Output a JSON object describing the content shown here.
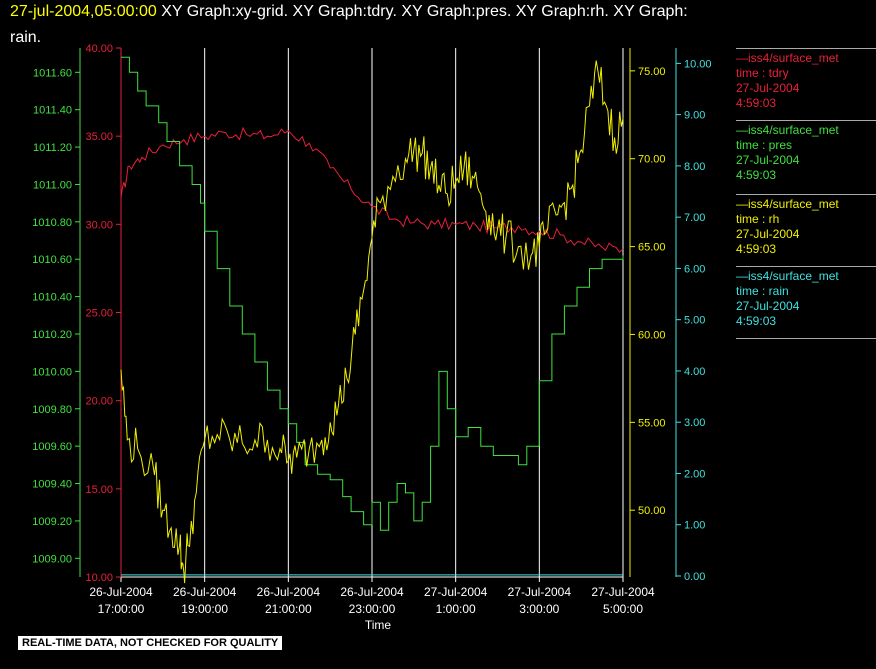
{
  "title": {
    "timestamp": "27-jul-2004,05:00:00",
    "line1_rest": " XY Graph:xy-grid.  XY Graph:tdry.  XY Graph:pres.  XY Graph:rh.  XY Graph:",
    "line2": "rain."
  },
  "notice": "REAL-TIME DATA, NOT CHECKED FOR QUALITY",
  "colors": {
    "tdry": "#e8203a",
    "pres": "#40e040",
    "rh": "#f0f000",
    "rain": "#40e0e0",
    "grid": "#ffffff"
  },
  "legend": [
    {
      "source": "—iss4/surface_met",
      "field": "time : tdry",
      "date": "27-Jul-2004",
      "time": "4:59:03",
      "color": "#e8203a"
    },
    {
      "source": "—iss4/surface_met",
      "field": "time : pres",
      "date": "27-Jul-2004",
      "time": "4:59:03",
      "color": "#40e040"
    },
    {
      "source": "—iss4/surface_met",
      "field": "time : rh",
      "date": "27-Jul-2004",
      "time": "4:59:03",
      "color": "#f0f000"
    },
    {
      "source": "—iss4/surface_met",
      "field": "time : rain",
      "date": "27-Jul-2004",
      "time": "4:59:03",
      "color": "#40e0e0"
    }
  ],
  "chart_data": {
    "type": "line",
    "xlabel": "Time",
    "xlim": [
      0,
      12
    ],
    "x_tick_values": [
      0,
      2,
      4,
      6,
      8,
      10,
      12
    ],
    "x_tick_labels": [
      [
        "26-Jul-2004",
        "17:00:00"
      ],
      [
        "26-Jul-2004",
        "19:00:00"
      ],
      [
        "26-Jul-2004",
        "21:00:00"
      ],
      [
        "26-Jul-2004",
        "23:00:00"
      ],
      [
        "27-Jul-2004",
        "1:00:00"
      ],
      [
        "27-Jul-2004",
        "3:00:00"
      ],
      [
        "27-Jul-2004",
        "5:00:00"
      ]
    ],
    "grid": "vertical",
    "axes": [
      {
        "id": "pres",
        "color": "#40e040",
        "range": [
          1008.9,
          1011.73
        ],
        "ticks": [
          "1009.00",
          "1009.20",
          "1009.40",
          "1009.60",
          "1009.80",
          "1010.00",
          "1010.20",
          "1010.40",
          "1010.60",
          "1010.80",
          "1011.00",
          "1011.20",
          "1011.40",
          "1011.60"
        ]
      },
      {
        "id": "tdry",
        "color": "#e8203a",
        "range": [
          10,
          40
        ],
        "ticks": [
          "10.00",
          "15.00",
          "20.00",
          "25.00",
          "30.00",
          "35.00",
          "40.00"
        ]
      },
      {
        "id": "rh",
        "color": "#f0f000",
        "range": [
          46.2,
          76.3
        ],
        "ticks": [
          "50.00",
          "55.00",
          "60.00",
          "65.00",
          "70.00",
          "75.00"
        ]
      },
      {
        "id": "rain",
        "color": "#40e0e0",
        "range": [
          -0.02,
          10.3
        ],
        "ticks": [
          "0.00",
          "1.00",
          "2.00",
          "3.00",
          "4.00",
          "5.00",
          "6.00",
          "7.00",
          "8.00",
          "9.00",
          "10.00"
        ]
      }
    ],
    "series": [
      {
        "name": "iss4/surface_met time : tdry",
        "axis": "tdry",
        "color": "#e8203a",
        "x": [
          0,
          0.2,
          0.5,
          1.0,
          1.5,
          2.0,
          2.5,
          3.0,
          3.5,
          4.0,
          4.5,
          5.0,
          5.5,
          6.0,
          6.5,
          7.0,
          7.5,
          8.0,
          8.5,
          9.0,
          9.5,
          10.0,
          10.5,
          11.0,
          11.5,
          12.0
        ],
        "y": [
          31.5,
          33.3,
          33.8,
          34.5,
          34.8,
          35.0,
          35.2,
          35.1,
          35.0,
          35.3,
          34.6,
          33.2,
          32.0,
          31.0,
          30.3,
          30.1,
          30.0,
          30.0,
          29.9,
          29.8,
          29.9,
          29.6,
          29.4,
          29.0,
          28.7,
          28.6
        ]
      },
      {
        "name": "iss4/surface_met time : pres",
        "axis": "pres",
        "color": "#40e040",
        "x": [
          0,
          0.2,
          0.4,
          0.6,
          0.9,
          1.1,
          1.4,
          1.7,
          1.9,
          2.0,
          2.3,
          2.6,
          2.9,
          3.2,
          3.5,
          3.8,
          4.0,
          4.2,
          4.4,
          4.7,
          5.0,
          5.3,
          5.5,
          5.8,
          6.0,
          6.2,
          6.4,
          6.6,
          6.8,
          7.0,
          7.2,
          7.4,
          7.6,
          7.8,
          8.0,
          8.3,
          8.6,
          8.9,
          9.2,
          9.5,
          9.7,
          10.0,
          10.3,
          10.6,
          10.9,
          11.2,
          11.5,
          11.8,
          12.0
        ],
        "y": [
          1011.68,
          1011.6,
          1011.5,
          1011.42,
          1011.33,
          1011.23,
          1011.1,
          1011.0,
          1010.9,
          1010.75,
          1010.55,
          1010.35,
          1010.2,
          1010.05,
          1009.9,
          1009.8,
          1009.72,
          1009.62,
          1009.5,
          1009.45,
          1009.42,
          1009.33,
          1009.25,
          1009.18,
          1009.3,
          1009.15,
          1009.3,
          1009.4,
          1009.35,
          1009.2,
          1009.3,
          1009.6,
          1010.0,
          1009.8,
          1009.65,
          1009.7,
          1009.6,
          1009.55,
          1009.55,
          1009.5,
          1009.6,
          1009.95,
          1010.2,
          1010.35,
          1010.45,
          1010.55,
          1010.6,
          1010.6,
          1010.62
        ]
      },
      {
        "name": "iss4/surface_met time : rh",
        "axis": "rh",
        "color": "#f0f000",
        "x": [
          0,
          0.15,
          0.4,
          0.8,
          1.0,
          1.2,
          1.4,
          1.5,
          1.6,
          1.8,
          2.0,
          2.3,
          2.6,
          2.9,
          3.2,
          3.5,
          3.8,
          4.0,
          4.2,
          4.5,
          4.8,
          5.0,
          5.2,
          5.4,
          5.6,
          5.8,
          6.0,
          6.2,
          6.5,
          6.8,
          7.0,
          7.2,
          7.4,
          7.6,
          7.8,
          8.0,
          8.2,
          8.4,
          8.6,
          8.8,
          9.0,
          9.2,
          9.5,
          9.8,
          10.0,
          10.2,
          10.4,
          10.6,
          10.8,
          11.0,
          11.2,
          11.4,
          11.6,
          11.8,
          12.0
        ],
        "y": [
          58.0,
          54.0,
          53.5,
          52.0,
          50.0,
          49.0,
          48.0,
          46.5,
          48.0,
          51.0,
          54.0,
          54.3,
          54.0,
          53.8,
          54.0,
          54.0,
          53.5,
          52.8,
          53.0,
          53.5,
          54.0,
          55.0,
          56.0,
          57.5,
          60.0,
          62.5,
          65.5,
          67.5,
          69.0,
          70.0,
          70.5,
          70.3,
          69.5,
          68.5,
          68.0,
          68.7,
          69.5,
          69.0,
          68.0,
          66.8,
          66.0,
          65.5,
          65.0,
          64.5,
          65.0,
          66.0,
          66.8,
          67.5,
          68.5,
          70.5,
          73.0,
          75.0,
          73.0,
          71.2,
          72.3
        ]
      },
      {
        "name": "iss4/surface_met time : rain",
        "axis": "rain",
        "color": "#40e0e0",
        "x": [
          0,
          12
        ],
        "y": [
          0.02,
          0.02
        ]
      }
    ]
  }
}
